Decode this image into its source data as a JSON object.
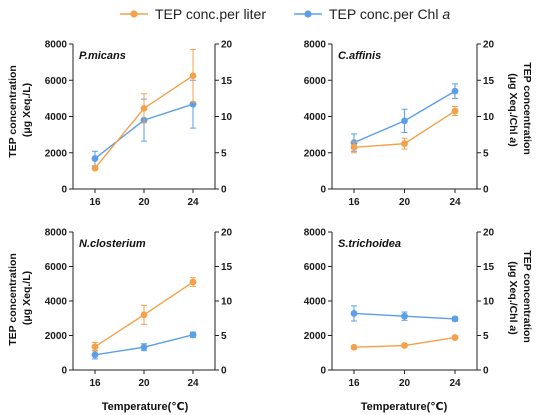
{
  "legend": {
    "series1": "TEP conc.per liter",
    "series2_prefix": "TEP conc.per Chl ",
    "series2_italic": "a"
  },
  "colors": {
    "per_liter": "#F5A04A",
    "per_chl": "#5B9EEA"
  },
  "left_ylabel": {
    "line1": "TEP concentration",
    "line2": "(μg Xeq./L)"
  },
  "right_ylabel": {
    "line1": "TEP concentration",
    "line2_prefix": "(μg Xeq./Chl ",
    "line2_italic": "a",
    "line2_suffix": ")"
  },
  "xlabel": "Temperature(℃)",
  "chart_data": [
    {
      "type": "line",
      "title": "P.micans",
      "categories": [
        "16",
        "20",
        "24"
      ],
      "ylim_left": [
        0,
        8000
      ],
      "yticks_left": [
        "0",
        "2000",
        "4000",
        "6000",
        "8000"
      ],
      "ylim_right": [
        0,
        20
      ],
      "yticks_right": [
        "0",
        "5",
        "10",
        "15",
        "20"
      ],
      "series": [
        {
          "name": "TEP conc.per liter",
          "axis": "left",
          "values": [
            1150,
            4450,
            6250
          ],
          "errors": [
            80,
            800,
            1450
          ]
        },
        {
          "name": "TEP conc.per Chl a",
          "axis": "right",
          "values": [
            4.2,
            9.5,
            11.7
          ],
          "errors": [
            1.0,
            2.9,
            3.3
          ]
        }
      ]
    },
    {
      "type": "line",
      "title": "C.affinis",
      "categories": [
        "16",
        "20",
        "24"
      ],
      "ylim_left": [
        0,
        8000
      ],
      "yticks_left": [
        "0",
        "2000",
        "4000",
        "6000",
        "8000"
      ],
      "ylim_right": [
        0,
        20
      ],
      "yticks_right": [
        "0",
        "5",
        "10",
        "15",
        "20"
      ],
      "series": [
        {
          "name": "TEP conc.per liter",
          "axis": "left",
          "values": [
            2300,
            2500,
            4300
          ],
          "errors": [
            300,
            300,
            250
          ]
        },
        {
          "name": "TEP conc.per Chl a",
          "axis": "right",
          "values": [
            6.4,
            9.4,
            13.5
          ],
          "errors": [
            1.2,
            1.6,
            1.0
          ]
        }
      ]
    },
    {
      "type": "line",
      "title": "N.closterium",
      "categories": [
        "16",
        "20",
        "24"
      ],
      "ylim_left": [
        0,
        8000
      ],
      "yticks_left": [
        "0",
        "2000",
        "4000",
        "6000",
        "8000"
      ],
      "ylim_right": [
        0,
        20
      ],
      "yticks_right": [
        "0",
        "5",
        "10",
        "15",
        "20"
      ],
      "series": [
        {
          "name": "TEP conc.per liter",
          "axis": "left",
          "values": [
            1350,
            3200,
            5100
          ],
          "errors": [
            250,
            550,
            250
          ]
        },
        {
          "name": "TEP conc.per Chl a",
          "axis": "right",
          "values": [
            2.2,
            3.3,
            5.1
          ],
          "errors": [
            0.6,
            0.5,
            0.4
          ]
        }
      ]
    },
    {
      "type": "line",
      "title": "S.trichoidea",
      "categories": [
        "16",
        "20",
        "24"
      ],
      "ylim_left": [
        0,
        8000
      ],
      "yticks_left": [
        "0",
        "2000",
        "4000",
        "6000",
        "8000"
      ],
      "ylim_right": [
        0,
        20
      ],
      "yticks_right": [
        "0",
        "5",
        "10",
        "15",
        "20"
      ],
      "series": [
        {
          "name": "TEP conc.per liter",
          "axis": "left",
          "values": [
            1320,
            1420,
            1880
          ],
          "errors": [
            50,
            60,
            60
          ]
        },
        {
          "name": "TEP conc.per Chl a",
          "axis": "right",
          "values": [
            8.2,
            7.8,
            7.4
          ],
          "errors": [
            1.1,
            0.6,
            0.3
          ]
        }
      ]
    }
  ]
}
